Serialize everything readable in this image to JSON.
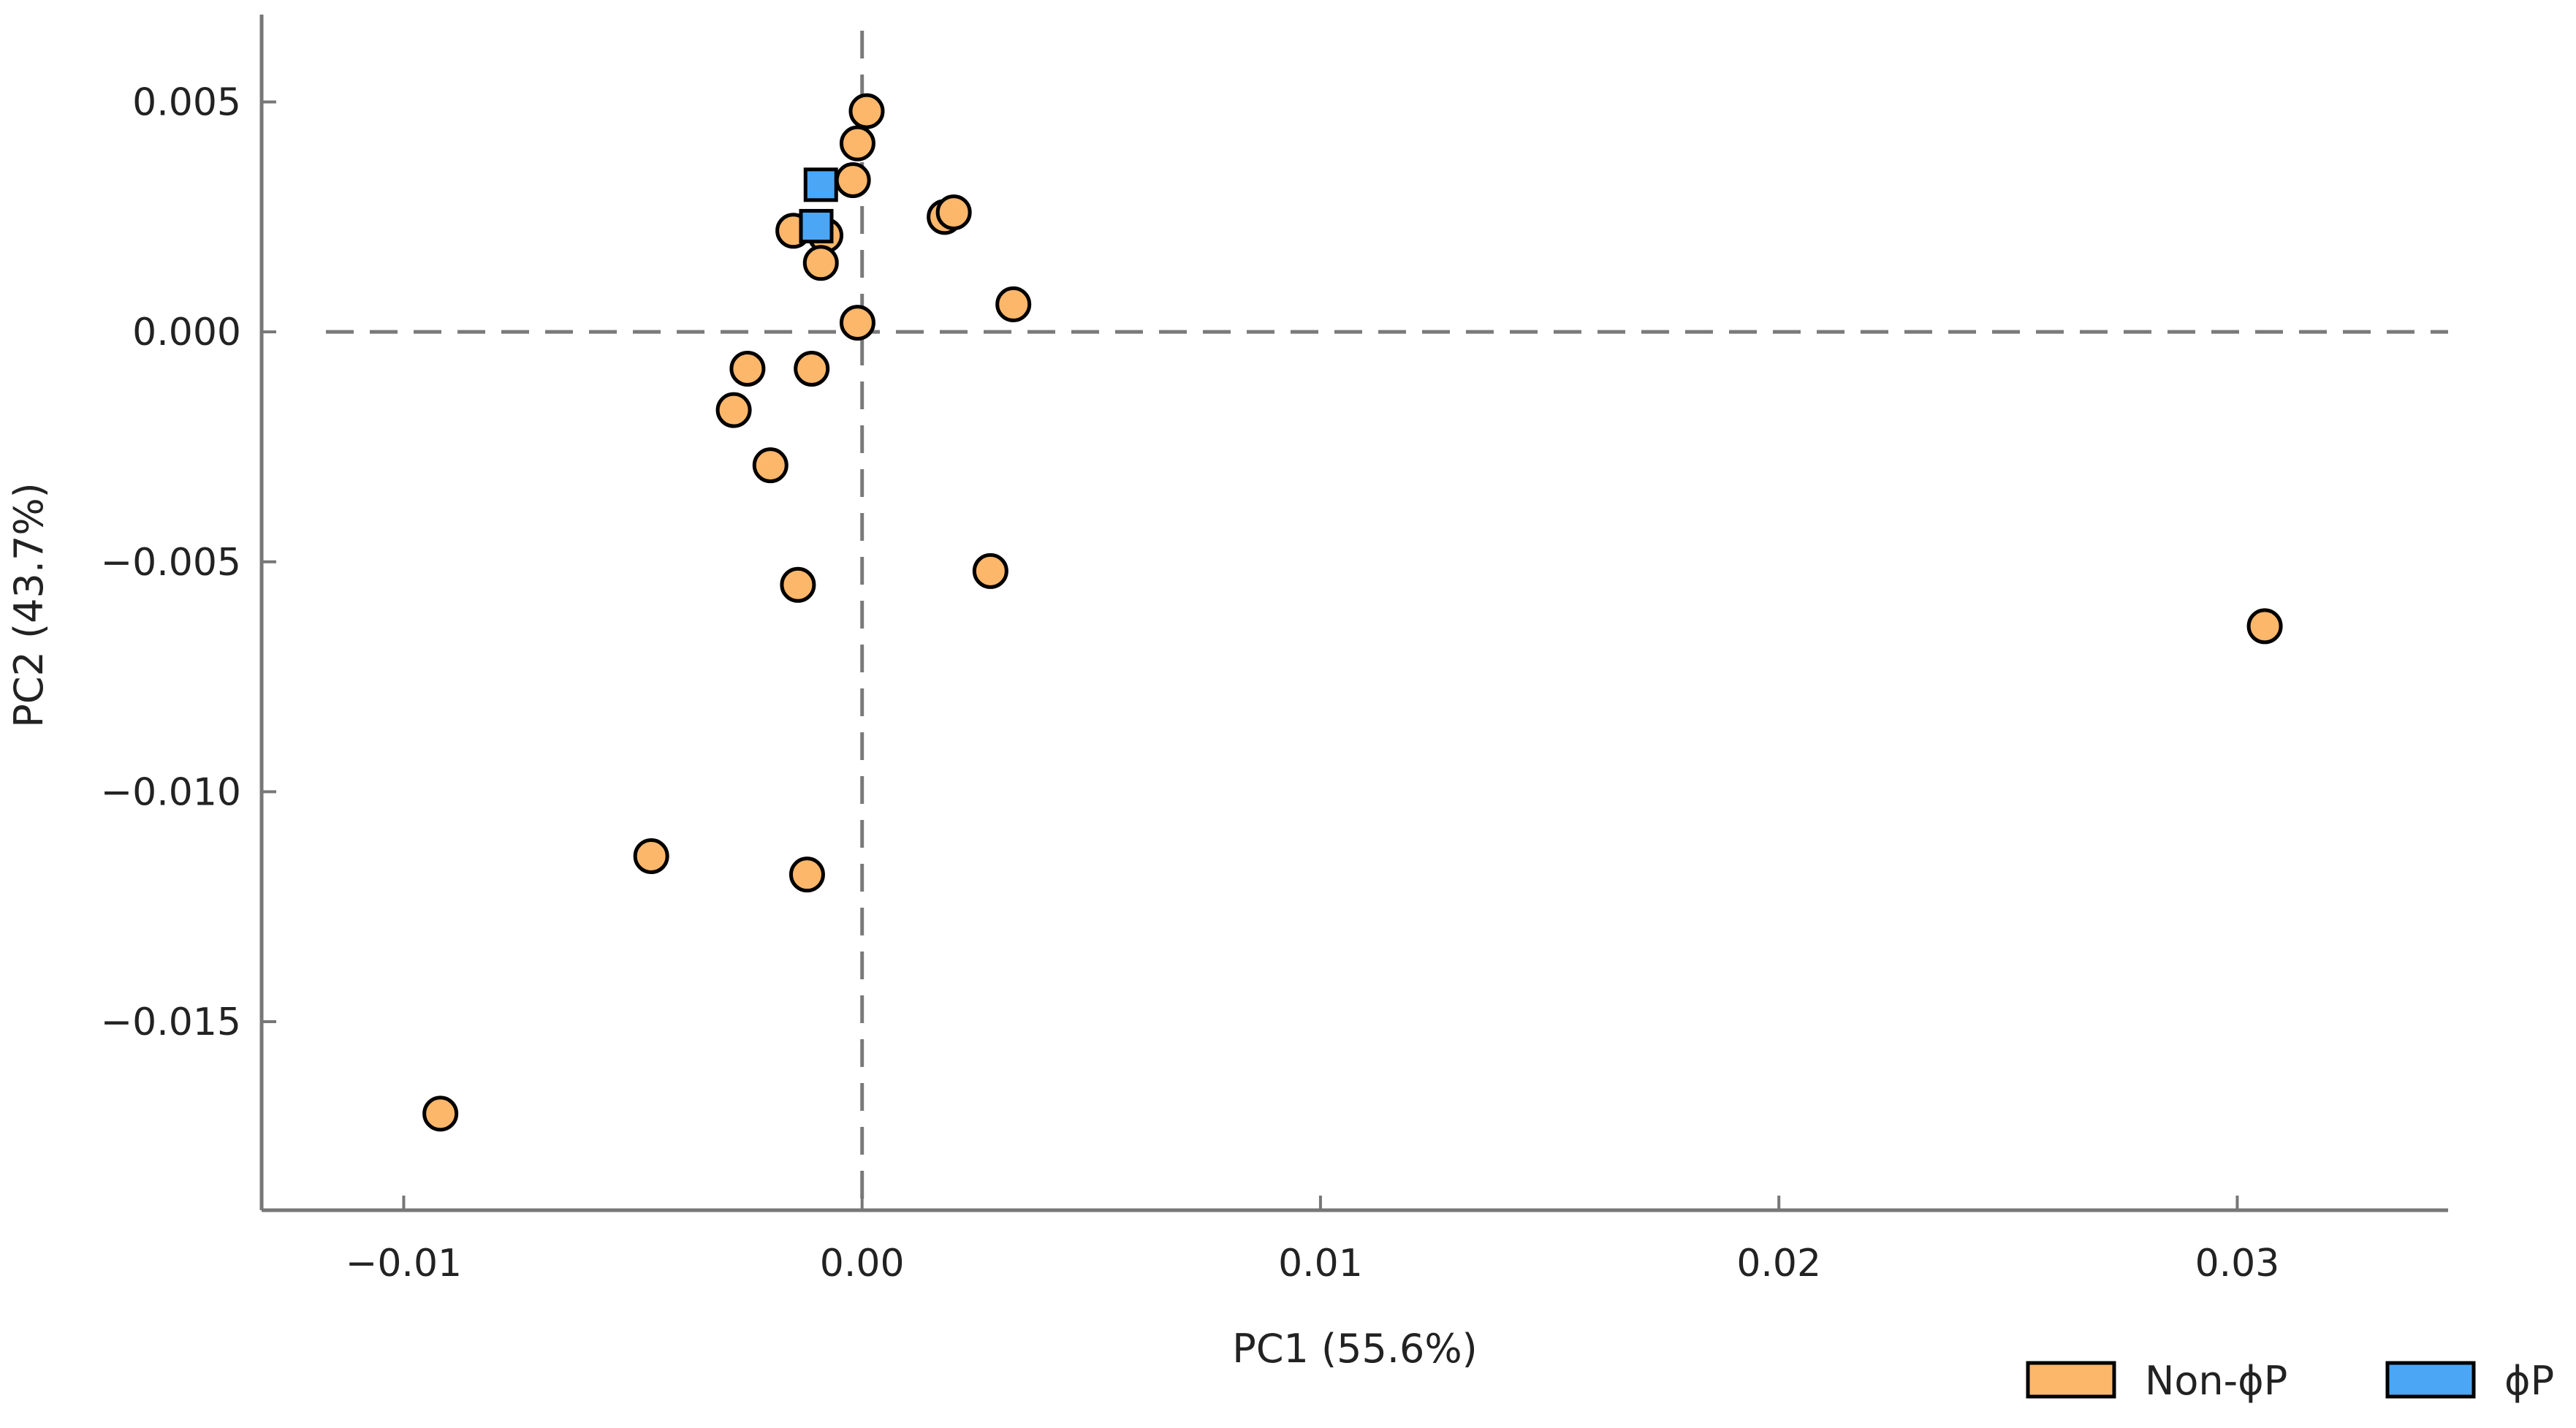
{
  "chart_data": {
    "type": "scatter",
    "title": "",
    "xlabel": "PC1 (55.6%)",
    "ylabel": "PC2 (43.7%)",
    "xlim": [
      -0.0131,
      0.0346
    ],
    "ylim": [
      -0.0191,
      0.0069
    ],
    "x_ticks": [
      -0.01,
      0.0,
      0.01,
      0.02,
      0.03
    ],
    "x_tick_labels": [
      "−0.01",
      "0.00",
      "0.01",
      "0.02",
      "0.03"
    ],
    "y_ticks": [
      0.005,
      0.0,
      -0.005,
      -0.01,
      -0.015
    ],
    "y_tick_labels": [
      "0.005",
      "0.000",
      "−0.005",
      "−0.010",
      "−0.015"
    ],
    "reference_lines": {
      "x": 0,
      "y": 0,
      "style": "dashed"
    },
    "grid": false,
    "legend_position": "bottom-right",
    "series": [
      {
        "name": "Non-ϕP",
        "marker": "circle",
        "color": "#FDB76A",
        "edge_color": "#000000",
        "points": [
          [
            0.0001,
            0.0048
          ],
          [
            -0.0001,
            0.0041
          ],
          [
            -0.0002,
            0.0033
          ],
          [
            -0.0008,
            0.0021
          ],
          [
            -0.0015,
            0.0022
          ],
          [
            -0.0009,
            0.0015
          ],
          [
            0.0018,
            0.0025
          ],
          [
            0.002,
            0.0026
          ],
          [
            0.0033,
            0.0006
          ],
          [
            -0.0001,
            0.0002
          ],
          [
            -0.0025,
            -0.0008
          ],
          [
            -0.0011,
            -0.0008
          ],
          [
            -0.0028,
            -0.0017
          ],
          [
            -0.002,
            -0.0029
          ],
          [
            -0.0014,
            -0.0055
          ],
          [
            0.0028,
            -0.0052
          ],
          [
            0.0306,
            -0.0064
          ],
          [
            -0.0046,
            -0.0114
          ],
          [
            -0.0012,
            -0.0118
          ],
          [
            -0.0092,
            -0.017
          ]
        ]
      },
      {
        "name": "ϕP",
        "marker": "square",
        "color": "#4BA6F5",
        "edge_color": "#000000",
        "points": [
          [
            -0.0009,
            0.0032
          ],
          [
            -0.001,
            0.0023
          ]
        ]
      }
    ]
  }
}
